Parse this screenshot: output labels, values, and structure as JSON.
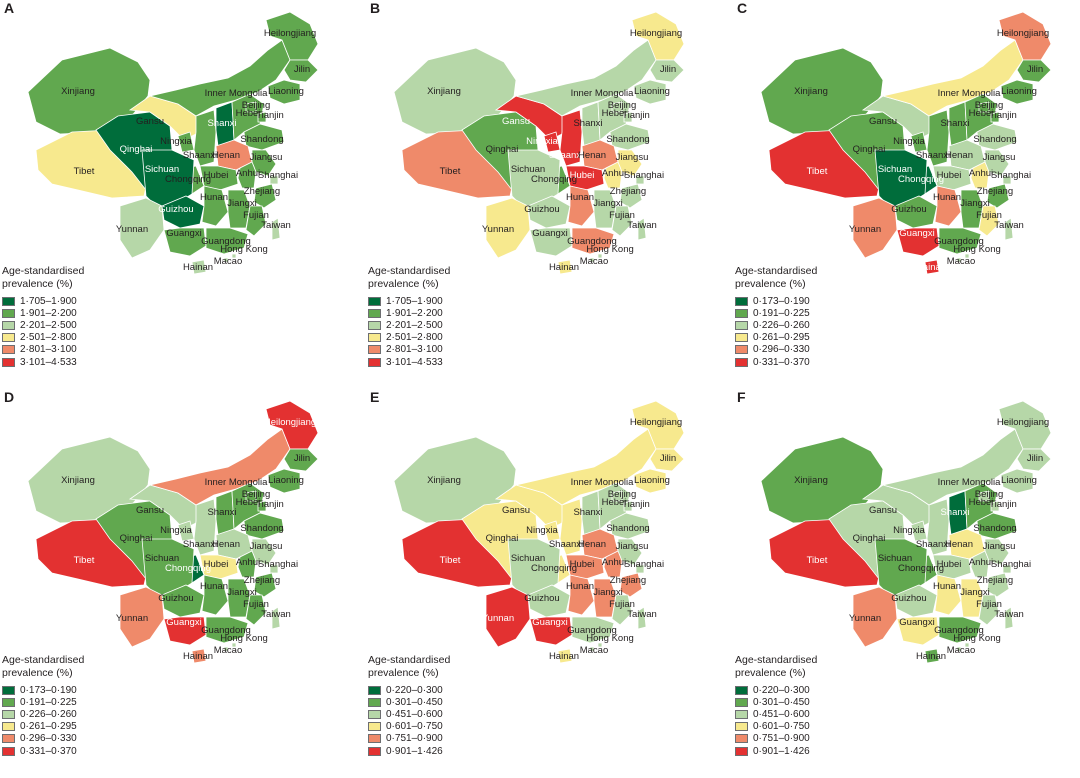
{
  "legend_title": [
    "Age-standardised",
    "prevalence (%)"
  ],
  "palette": [
    "#006d3b",
    "#61a84f",
    "#b6d7a8",
    "#f7e98e",
    "#ef8a6a",
    "#e33131"
  ],
  "legends": {
    "L1": [
      "1·705–1·900",
      "1·901–2·200",
      "2·201–2·500",
      "2·501–2·800",
      "2·801–3·100",
      "3·101–4·533"
    ],
    "L2": [
      "0·173–0·190",
      "0·191–0·225",
      "0·226–0·260",
      "0·261–0·295",
      "0·296–0·330",
      "0·331–0·370"
    ],
    "L3": [
      "0·220–0·300",
      "0·301–0·450",
      "0·451–0·600",
      "0·601–0·750",
      "0·751–0·900",
      "0·901–1·426"
    ]
  },
  "panels": [
    {
      "letter": "A",
      "legend": "L1",
      "labels": [
        "Heilongjiang",
        "Jilin",
        "Liaoning",
        "Inner Mongolia",
        "Xinjiang",
        "Gansu",
        "Ningxia",
        "Qinghai",
        "Shanxi",
        "Hebei",
        "Beijing",
        "Tianjin",
        "Shaanxi",
        "Shandong",
        "Henan",
        "Jiangsu",
        "Tibet",
        "Sichuan",
        "Chongqing",
        "Hubei",
        "Anhui",
        "Shanghai",
        "Zhejiang",
        "Hunan",
        "Jiangxi",
        "Guizhou",
        "Fujian",
        "Taiwan",
        "Yunnan",
        "Guangxi",
        "Guangdong",
        "Hong Kong",
        "Macao",
        "Hainan"
      ]
    },
    {
      "letter": "B",
      "legend": "L1",
      "labels": [
        "Heilongjiang",
        "Jilin",
        "Liaoning",
        "Inner Mongolia",
        "Xinjiang",
        "Gansu",
        "Ningxia",
        "Qinghai",
        "Shanxi",
        "Hebei",
        "Beijing",
        "Tianjin",
        "Shaanxi",
        "Shandong",
        "Henan",
        "Jiangsu",
        "Tibet",
        "Sichuan",
        "Chongqing",
        "Hubei",
        "Anhui",
        "Shanghai",
        "Zhejiang",
        "Hunan",
        "Jiangxi",
        "Guizhou",
        "Fujian",
        "Taiwan",
        "Yunnan",
        "Guangxi",
        "Guangdong",
        "Hong Kong",
        "Macao",
        "Hainan"
      ]
    },
    {
      "letter": "C",
      "legend": "L2",
      "labels": [
        "Heilongjiang",
        "Jilin",
        "Liaoning",
        "Inner Mongolia",
        "Xinjiang",
        "Gansu",
        "Ningxia",
        "Qinghai",
        "Shanxi",
        "Hebei",
        "Beijing",
        "Tianjin",
        "Shaanxi",
        "Shandong",
        "Henan",
        "Jiangsu",
        "Tibet",
        "Sichuan",
        "Chongqing",
        "Hubei",
        "Anhui",
        "Shanghai",
        "Zhejiang",
        "Hunan",
        "Jiangxi",
        "Guizhou",
        "Fujian",
        "Taiwan",
        "Yunnan",
        "Guangxi",
        "Guangdong",
        "Hong Kong",
        "Macao",
        "Hainan"
      ]
    },
    {
      "letter": "D",
      "legend": "L2",
      "labels": [
        "Heilongjiang",
        "Jilin",
        "Liaoning",
        "Inner Mongolia",
        "Xinjiang",
        "Gansu",
        "Ningxia",
        "Qinghai",
        "Shanxi",
        "Hebei",
        "Beijing",
        "Tianjin",
        "Shaanxi",
        "Shandong",
        "Henan",
        "Jiangsu",
        "Tibet",
        "Sichuan",
        "Chongqing",
        "Hubei",
        "Anhui",
        "Shanghai",
        "Zhejiang",
        "Hunan",
        "Jiangxi",
        "Guizhou",
        "Fujian",
        "Taiwan",
        "Yunnan",
        "Guangxi",
        "Guangdong",
        "Hong Kong",
        "Macao",
        "Hainan"
      ]
    },
    {
      "letter": "E",
      "legend": "L3",
      "labels": [
        "Heilongjiang",
        "Jilin",
        "Liaoning",
        "Inner Mongolia",
        "Xinjiang",
        "Gansu",
        "Ningxia",
        "Qinghai",
        "Shanxi",
        "Hebei",
        "Beijing",
        "Tianjin",
        "Shaanxi",
        "Shandong",
        "Henan",
        "Jiangsu",
        "Tibet",
        "Sichuan",
        "Chongqing",
        "Hubei",
        "Anhui",
        "Shanghai",
        "Zhejiang",
        "Hunan",
        "Jiangxi",
        "Guizhou",
        "Fujian",
        "Taiwan",
        "Yunnan",
        "Guangxi",
        "Guangdong",
        "Hong Kong",
        "Macao",
        "Hainan"
      ]
    },
    {
      "letter": "F",
      "legend": "L3",
      "labels": [
        "Heilongjiang",
        "Jilin",
        "Liaoning",
        "Inner Mongolia",
        "Xinjiang",
        "Gansu",
        "Ningxia",
        "Qinghai",
        "Shanxi",
        "Hebei",
        "Beijing",
        "Tianjin",
        "Shaanxi",
        "Shandong",
        "Henan",
        "Jiangsu",
        "Tibet",
        "Sichuan",
        "Chongqing",
        "Hubei",
        "Anhui",
        "Shanghai",
        "Zhejiang",
        "Hunan",
        "Jiangxi",
        "Guizhou",
        "Fujian",
        "Taiwan",
        "Yunnan",
        "Guangxi",
        "Guangdong",
        "Hong Kong",
        "Macao",
        "Hainan"
      ]
    }
  ],
  "region_classes": {
    "A": {
      "Heilongjiang": 1,
      "Jilin": 1,
      "Liaoning": 1,
      "Inner Mongolia": 1,
      "Xinjiang": 1,
      "Gansu": 3,
      "Ningxia": 1,
      "Qinghai": 0,
      "Shanxi": 0,
      "Hebei": 1,
      "Beijing": 1,
      "Tianjin": 1,
      "Shaanxi": 1,
      "Shandong": 1,
      "Henan": 4,
      "Jiangsu": 1,
      "Tibet": 3,
      "Sichuan": 0,
      "Chongqing": 1,
      "Hubei": 1,
      "Anhui": 1,
      "Shanghai": 2,
      "Zhejiang": 1,
      "Hunan": 1,
      "Jiangxi": 1,
      "Guizhou": 0,
      "Fujian": 1,
      "Taiwan": 2,
      "Yunnan": 2,
      "Guangxi": 1,
      "Guangdong": 1,
      "Hong Kong": 2,
      "Macao": 2,
      "Hainan": 2
    },
    "B": {
      "Heilongjiang": 3,
      "Jilin": 2,
      "Liaoning": 2,
      "Inner Mongolia": 2,
      "Xinjiang": 2,
      "Gansu": 5,
      "Ningxia": 5,
      "Qinghai": 1,
      "Shanxi": 2,
      "Hebei": 2,
      "Beijing": 2,
      "Tianjin": 2,
      "Shaanxi": 5,
      "Shandong": 2,
      "Henan": 4,
      "Jiangsu": 3,
      "Tibet": 4,
      "Sichuan": 2,
      "Chongqing": 1,
      "Hubei": 5,
      "Anhui": 3,
      "Shanghai": 2,
      "Zhejiang": 2,
      "Hunan": 4,
      "Jiangxi": 2,
      "Guizhou": 2,
      "Fujian": 2,
      "Taiwan": 2,
      "Yunnan": 3,
      "Guangxi": 2,
      "Guangdong": 4,
      "Hong Kong": 2,
      "Macao": 2,
      "Hainan": 3
    },
    "C": {
      "Heilongjiang": 4,
      "Jilin": 1,
      "Liaoning": 1,
      "Inner Mongolia": 3,
      "Xinjiang": 1,
      "Gansu": 2,
      "Ningxia": 1,
      "Qinghai": 1,
      "Shanxi": 1,
      "Hebei": 1,
      "Beijing": 1,
      "Tianjin": 1,
      "Shaanxi": 1,
      "Shandong": 2,
      "Henan": 2,
      "Jiangsu": 2,
      "Tibet": 5,
      "Sichuan": 0,
      "Chongqing": 0,
      "Hubei": 2,
      "Anhui": 3,
      "Shanghai": 2,
      "Zhejiang": 1,
      "Hunan": 4,
      "Jiangxi": 1,
      "Guizhou": 1,
      "Fujian": 3,
      "Taiwan": 2,
      "Yunnan": 4,
      "Guangxi": 5,
      "Guangdong": 1,
      "Hong Kong": 2,
      "Macao": 2,
      "Hainan": 5
    },
    "D": {
      "Heilongjiang": 5,
      "Jilin": 1,
      "Liaoning": 1,
      "Inner Mongolia": 4,
      "Xinjiang": 2,
      "Gansu": 2,
      "Ningxia": 2,
      "Qinghai": 1,
      "Shanxi": 1,
      "Hebei": 1,
      "Beijing": 1,
      "Tianjin": 1,
      "Shaanxi": 2,
      "Shandong": 1,
      "Henan": 2,
      "Jiangsu": 2,
      "Tibet": 5,
      "Sichuan": 1,
      "Chongqing": 0,
      "Hubei": 3,
      "Anhui": 1,
      "Shanghai": 2,
      "Zhejiang": 1,
      "Hunan": 1,
      "Jiangxi": 1,
      "Guizhou": 1,
      "Fujian": 1,
      "Taiwan": 2,
      "Yunnan": 4,
      "Guangxi": 5,
      "Guangdong": 1,
      "Hong Kong": 2,
      "Macao": 2,
      "Hainan": 4
    },
    "E": {
      "Heilongjiang": 3,
      "Jilin": 3,
      "Liaoning": 3,
      "Inner Mongolia": 3,
      "Xinjiang": 2,
      "Gansu": 3,
      "Ningxia": 3,
      "Qinghai": 3,
      "Shanxi": 2,
      "Hebei": 2,
      "Beijing": 2,
      "Tianjin": 2,
      "Shaanxi": 3,
      "Shandong": 2,
      "Henan": 4,
      "Jiangsu": 2,
      "Tibet": 5,
      "Sichuan": 2,
      "Chongqing": 3,
      "Hubei": 4,
      "Anhui": 4,
      "Shanghai": 2,
      "Zhejiang": 4,
      "Hunan": 4,
      "Jiangxi": 4,
      "Guizhou": 2,
      "Fujian": 2,
      "Taiwan": 2,
      "Yunnan": 5,
      "Guangxi": 5,
      "Guangdong": 2,
      "Hong Kong": 2,
      "Macao": 2,
      "Hainan": 3
    },
    "F": {
      "Heilongjiang": 2,
      "Jilin": 2,
      "Liaoning": 2,
      "Inner Mongolia": 2,
      "Xinjiang": 1,
      "Gansu": 2,
      "Ningxia": 2,
      "Qinghai": 2,
      "Shanxi": 0,
      "Hebei": 1,
      "Beijing": 2,
      "Tianjin": 2,
      "Shaanxi": 2,
      "Shandong": 1,
      "Henan": 3,
      "Jiangsu": 2,
      "Tibet": 5,
      "Sichuan": 1,
      "Chongqing": 1,
      "Hubei": 2,
      "Anhui": 2,
      "Shanghai": 2,
      "Zhejiang": 2,
      "Hunan": 3,
      "Jiangxi": 3,
      "Guizhou": 2,
      "Fujian": 2,
      "Taiwan": 2,
      "Yunnan": 4,
      "Guangxi": 3,
      "Guangdong": 1,
      "Hong Kong": 2,
      "Macao": 2,
      "Hainan": 1
    }
  }
}
